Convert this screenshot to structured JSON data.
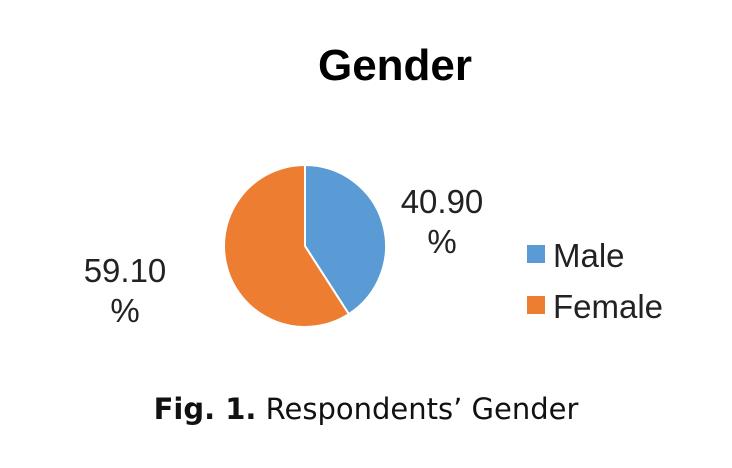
{
  "chart_data": {
    "type": "pie",
    "title": "Gender",
    "categories": [
      "Male",
      "Female"
    ],
    "values": [
      40.9,
      59.1
    ],
    "data_labels": [
      [
        "40.90",
        "%"
      ],
      [
        "59.10",
        "%"
      ]
    ],
    "colors": [
      "#5b9bd5",
      "#ed7d31"
    ],
    "legend": "right"
  },
  "caption": {
    "fig_label": "Fig. 1.",
    "text": "Respondents’ Gender"
  }
}
